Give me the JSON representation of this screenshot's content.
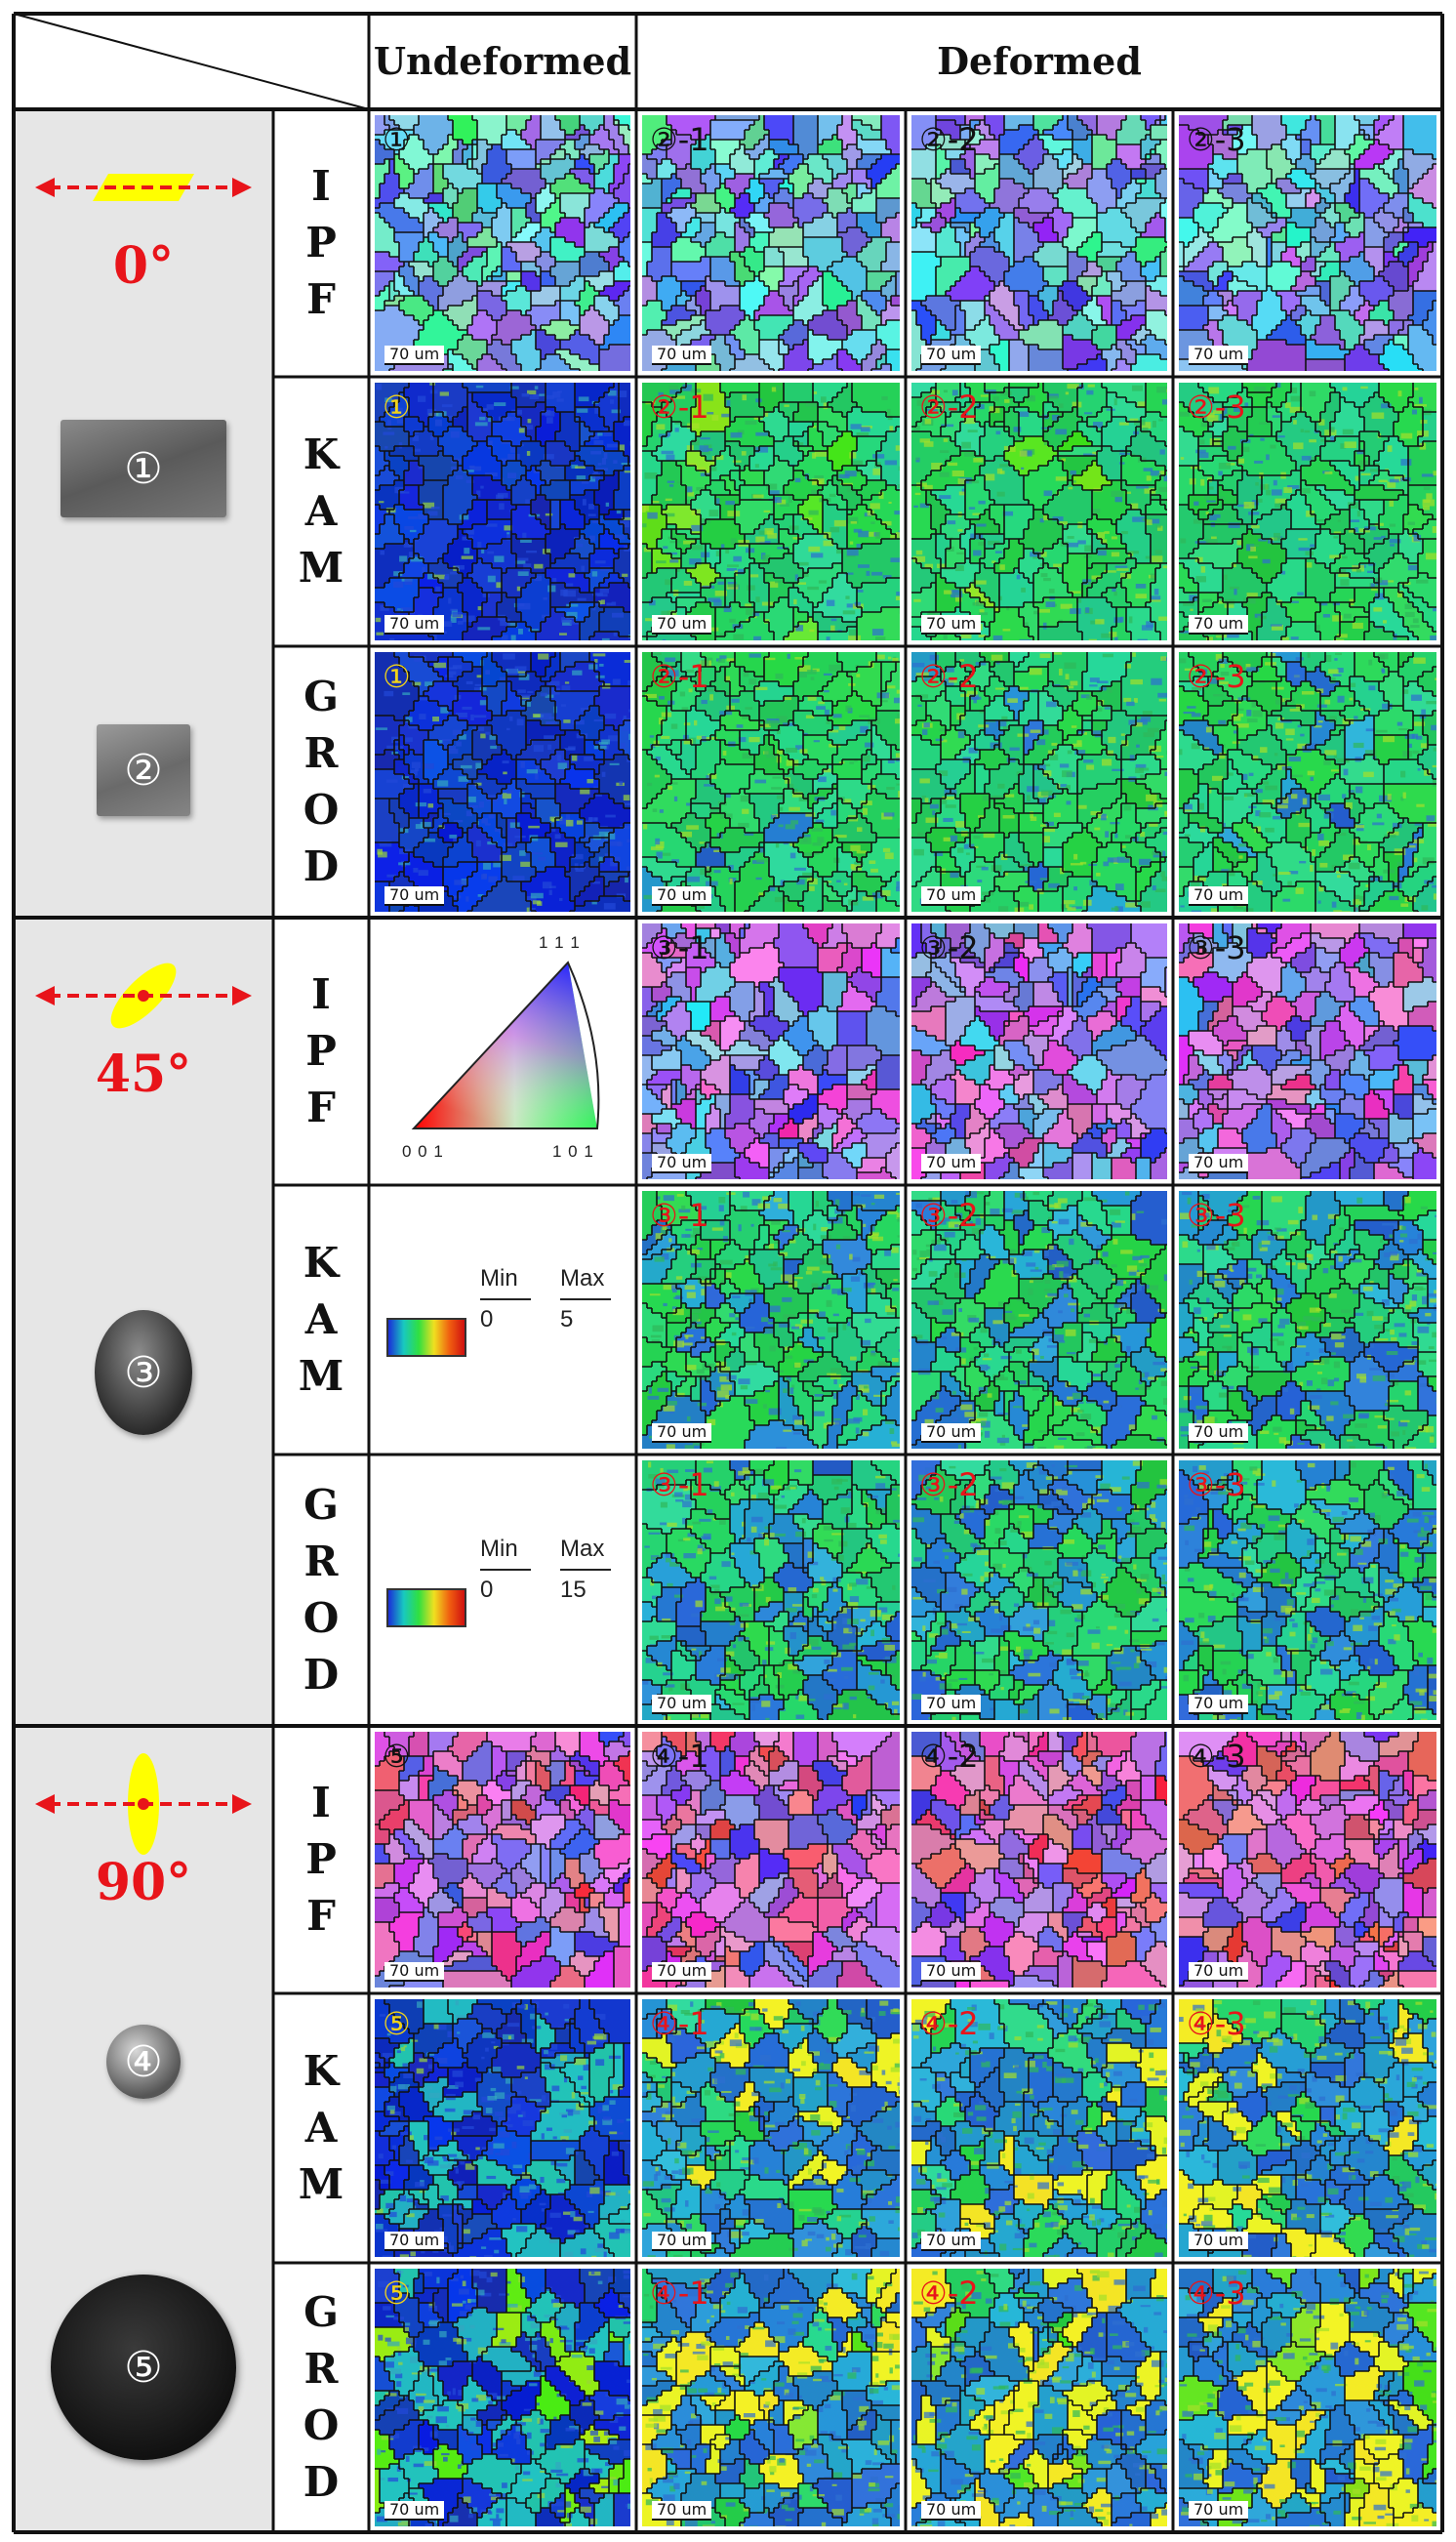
{
  "header": {
    "undeformed": "Undeformed",
    "deformed": "Deformed"
  },
  "row_labels": {
    "ipf": [
      "I",
      "P",
      "F"
    ],
    "kam": [
      "K",
      "A",
      "M"
    ],
    "grod": [
      "G",
      "R",
      "O",
      "D"
    ]
  },
  "groups": [
    {
      "angle": "0°",
      "samples": [
        "①",
        "②"
      ],
      "rows": {
        "ipf": {
          "undeformed": "①",
          "deformed": [
            "②-1",
            "②-2",
            "②-3"
          ]
        },
        "kam": {
          "undeformed": "①",
          "deformed": [
            "②-1",
            "②-2",
            "②-3"
          ]
        },
        "grod": {
          "undeformed": "①",
          "deformed": [
            "②-1",
            "②-2",
            "②-3"
          ]
        }
      }
    },
    {
      "angle": "45°",
      "samples": [
        "③"
      ],
      "rows": {
        "ipf": {
          "undeformed": "",
          "deformed": [
            "③-1",
            "③-2",
            "③-3"
          ]
        },
        "kam": {
          "undeformed": "",
          "deformed": [
            "③-1",
            "③-2",
            "③-3"
          ]
        },
        "grod": {
          "undeformed": "",
          "deformed": [
            "③-1",
            "③-2",
            "③-3"
          ]
        }
      }
    },
    {
      "angle": "90°",
      "samples": [
        "④",
        "⑤"
      ],
      "rows": {
        "ipf": {
          "undeformed": "⑤",
          "deformed": [
            "④-1",
            "④-2",
            "④-3"
          ]
        },
        "kam": {
          "undeformed": "⑤",
          "deformed": [
            "④-1",
            "④-2",
            "④-3"
          ]
        },
        "grod": {
          "undeformed": "⑤",
          "deformed": [
            "④-1",
            "④-2",
            "④-3"
          ]
        }
      }
    }
  ],
  "scale_bar": "70 um",
  "ipf_triangle": {
    "top": "1 1 1",
    "left": "0 0 1",
    "right": "1 0 1"
  },
  "kam_legend": {
    "min_label": "Min",
    "max_label": "Max",
    "min": "0",
    "max": "5"
  },
  "grod_legend": {
    "min_label": "Min",
    "max_label": "Max",
    "min": "0",
    "max": "15"
  },
  "colors": {
    "angle_text": "#e8141a",
    "grain_boundary": "#111111",
    "ipf_tag": "#111111",
    "undeformed_tag": "#f0d21a",
    "deformed_tag": "#e8141a"
  },
  "icons": [
    "double-arrow-icon",
    "specimen-shape-icon"
  ]
}
